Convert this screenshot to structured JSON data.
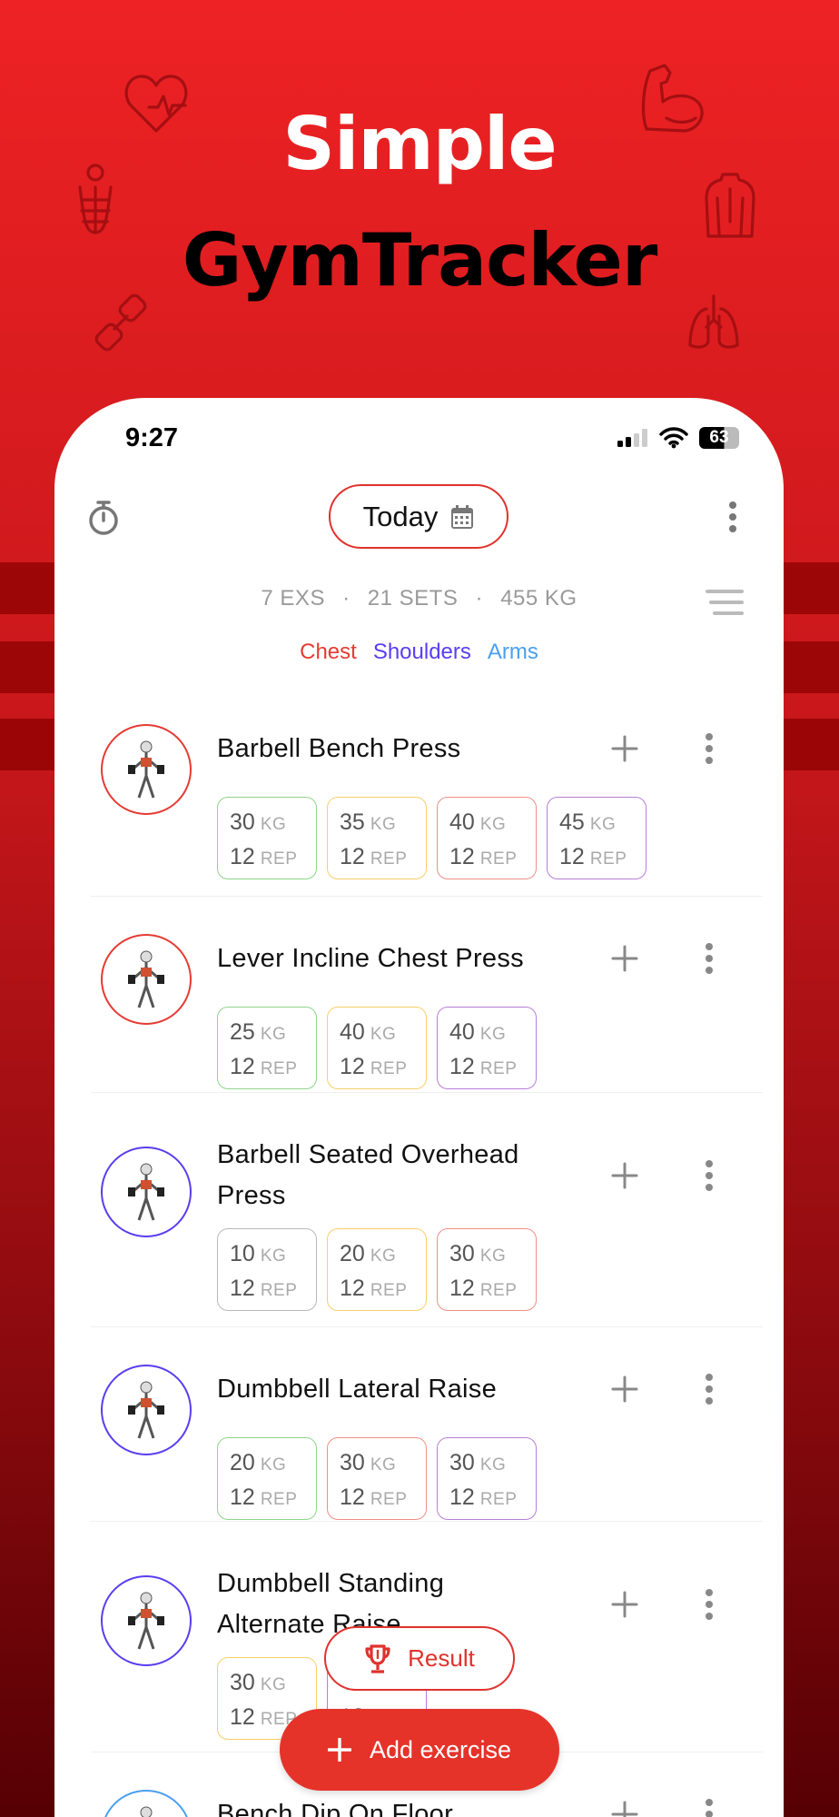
{
  "promo": {
    "line1": "Simple",
    "line2": "GymTracker"
  },
  "status_bar": {
    "time": "9:27",
    "battery": "63"
  },
  "toolbar": {
    "date_label": "Today",
    "timer_icon": "stopwatch-icon",
    "calendar_icon": "calendar-icon",
    "more_icon": "more-vertical-icon"
  },
  "summary": {
    "exercises": "7 EXS",
    "sets": "21 SETS",
    "volume": "455 KG",
    "separator": "·"
  },
  "muscle_tags": [
    {
      "label": "Chest",
      "color": "#e53b33"
    },
    {
      "label": "Shoulders",
      "color": "#5b3df0"
    },
    {
      "label": "Arms",
      "color": "#4a9ff0"
    }
  ],
  "units": {
    "weight": "KG",
    "reps": "REP"
  },
  "exercises": [
    {
      "name": [
        "Barbell Bench Press"
      ],
      "ring": "#e53b33",
      "sets": [
        {
          "weight": "30",
          "reps": "12",
          "color": "#8fd48a"
        },
        {
          "weight": "35",
          "reps": "12",
          "color": "#f7cf6a"
        },
        {
          "weight": "40",
          "reps": "12",
          "color": "#ef8f86"
        },
        {
          "weight": "45",
          "reps": "12",
          "color": "#b77fd6"
        }
      ]
    },
    {
      "name": [
        "Lever Incline Chest Press"
      ],
      "ring": "#e53b33",
      "sets": [
        {
          "weight": "25",
          "reps": "12",
          "color": "#8fd48a"
        },
        {
          "weight": "40",
          "reps": "12",
          "color": "#f7cf6a"
        },
        {
          "weight": "40",
          "reps": "12",
          "color": "#b77fd6"
        }
      ]
    },
    {
      "name": [
        "Barbell Seated Overhead",
        "Press"
      ],
      "ring": "#5b3df0",
      "sets": [
        {
          "weight": "10",
          "reps": "12",
          "color": "#b8b8b8"
        },
        {
          "weight": "20",
          "reps": "12",
          "color": "#f7cf6a"
        },
        {
          "weight": "30",
          "reps": "12",
          "color": "#ef8f86"
        }
      ]
    },
    {
      "name": [
        "Dumbbell Lateral Raise"
      ],
      "ring": "#5b3df0",
      "sets": [
        {
          "weight": "20",
          "reps": "12",
          "color": "#8fd48a"
        },
        {
          "weight": "30",
          "reps": "12",
          "color": "#ef8f86"
        },
        {
          "weight": "30",
          "reps": "12",
          "color": "#b77fd6"
        }
      ]
    },
    {
      "name": [
        "Dumbbell Standing",
        "Alternate Raise"
      ],
      "ring": "#5b3df0",
      "sets": [
        {
          "weight": "30",
          "reps": "12",
          "color": "#f7cf6a"
        },
        {
          "weight": "",
          "reps": "12",
          "color": "#b77fd6"
        }
      ]
    },
    {
      "name": [
        "Bench Dip On Floor"
      ],
      "ring": "#4a9ff0",
      "sets": []
    }
  ],
  "buttons": {
    "result": "Result",
    "add_exercise": "Add exercise"
  },
  "colors": {
    "accent": "#e5332a",
    "background_top": "#ee2224",
    "background_bottom": "#560004"
  }
}
